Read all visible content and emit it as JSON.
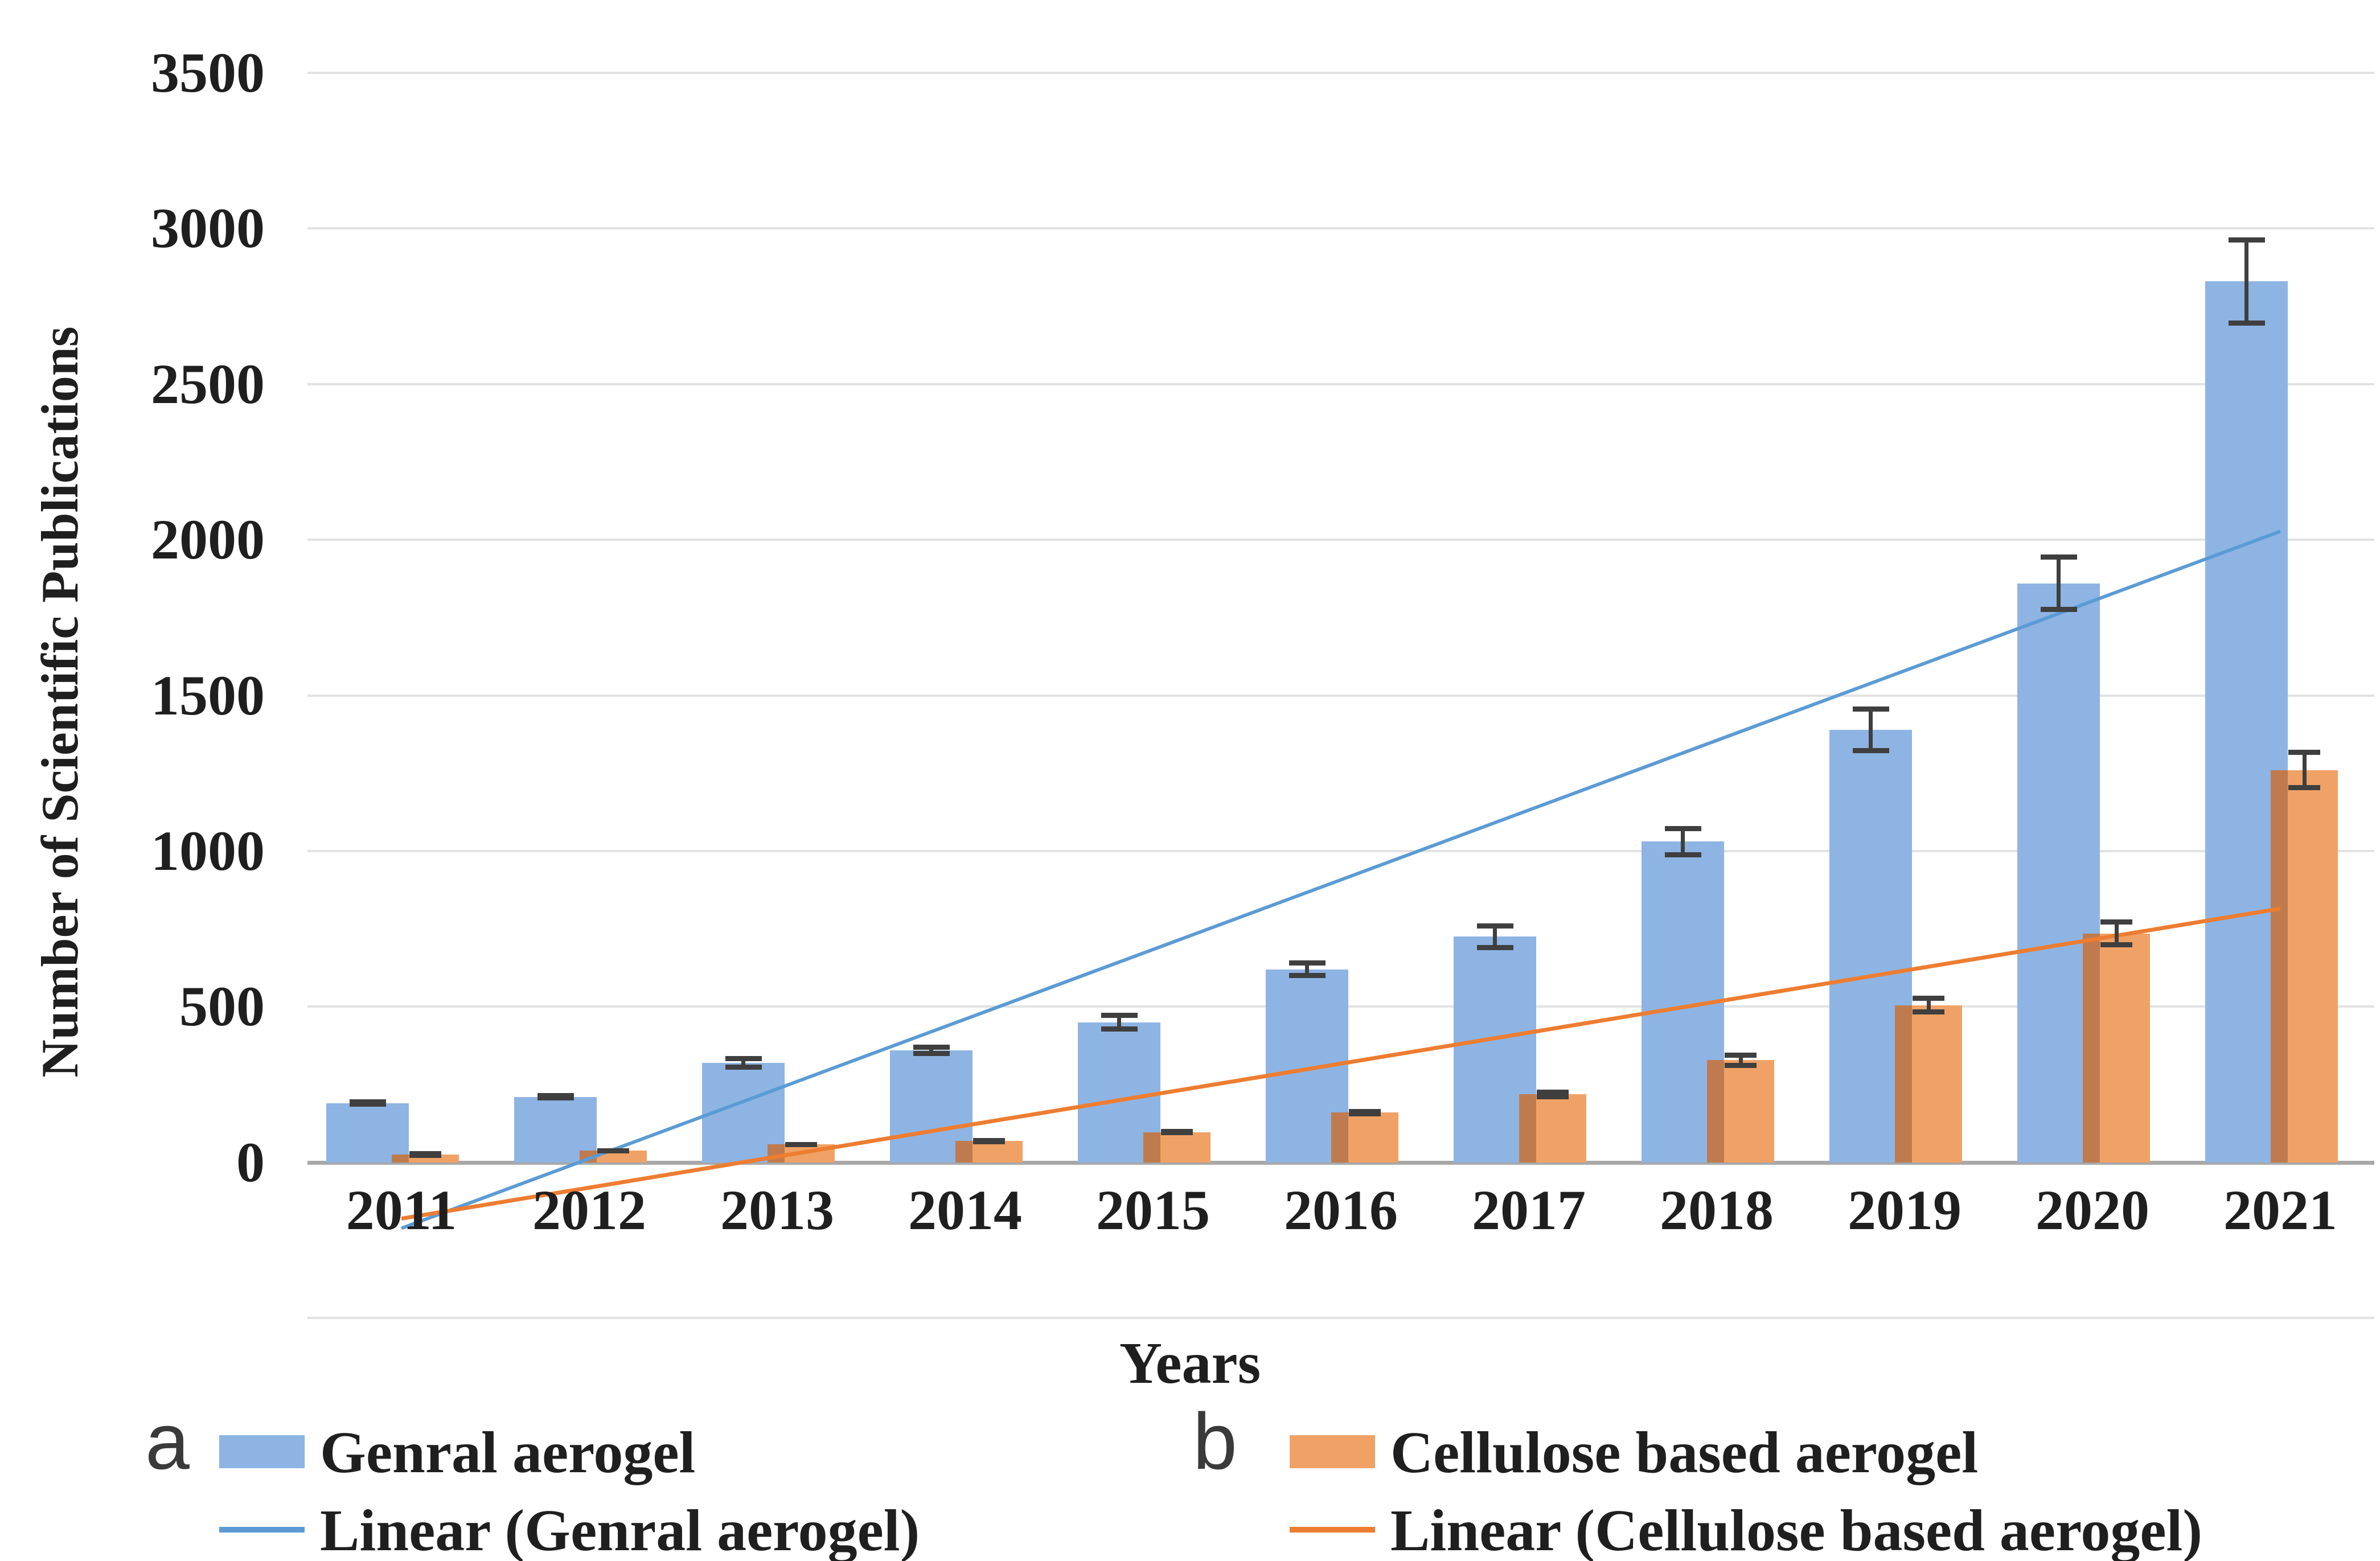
{
  "accent_colors": {
    "bar_blue": "#8eb4e3",
    "bar_orange": "#f0a266",
    "bar_orange_overlap": "#bf7b4e",
    "line_blue": "#5b9bd5",
    "line_orange": "#ed7d31",
    "error_bar": "#3f3f3f",
    "gridline": "#e2e2e2",
    "axis_line": "#a8a8a8",
    "text": "#1f1f1f"
  },
  "y_axis": {
    "title": "Number of Scientific Publications",
    "tick_labels": [
      "0",
      "500",
      "1000",
      "1500",
      "2000",
      "2500",
      "3000",
      "3500"
    ]
  },
  "x_axis": {
    "title": "Years"
  },
  "panel_labels": {
    "a": "a",
    "b": "b"
  },
  "legend": {
    "a_series_label": "Genral aerogel",
    "a_line_label": "Linear (Genral aerogel)",
    "b_series_label": "Cellulose based aerogel",
    "b_line_label": "Linear (Cellulose based aerogel)"
  },
  "chart_data": {
    "type": "bar",
    "title": "",
    "xlabel": "Years",
    "ylabel": "Number of Scientific Publications",
    "categories": [
      "2011",
      "2012",
      "2013",
      "2014",
      "2015",
      "2016",
      "2017",
      "2018",
      "2019",
      "2020",
      "2021"
    ],
    "ylim": [
      -500,
      3500
    ],
    "ytick_step": 500,
    "grid": true,
    "legend_position": "bottom",
    "series": [
      {
        "name": "Genral aerogel",
        "color": "#8eb4e3",
        "values": [
          190,
          210,
          320,
          360,
          450,
          620,
          725,
          1030,
          1390,
          1860,
          2830
        ],
        "error": [
          12,
          12,
          22,
          18,
          30,
          28,
          43,
          50,
          75,
          92,
          142
        ]
      },
      {
        "name": "Cellulose based aerogel",
        "color": "#f0a266",
        "values": [
          25,
          37,
          57,
          68,
          97,
          160,
          218,
          328,
          505,
          735,
          1260
        ],
        "error": [
          5,
          8,
          8,
          10,
          10,
          12,
          15,
          25,
          30,
          45,
          65
        ]
      }
    ],
    "trendlines": [
      {
        "name": "Linear (Genral aerogel)",
        "color": "#5b9bd5",
        "x1": "2011",
        "v1": -212,
        "x2": "2021",
        "v2": 2027
      },
      {
        "name": "Linear (Cellulose based aerogel)",
        "color": "#ed7d31",
        "x1": "2011",
        "v1": -181,
        "x2": "2021",
        "v2": 815
      }
    ]
  }
}
